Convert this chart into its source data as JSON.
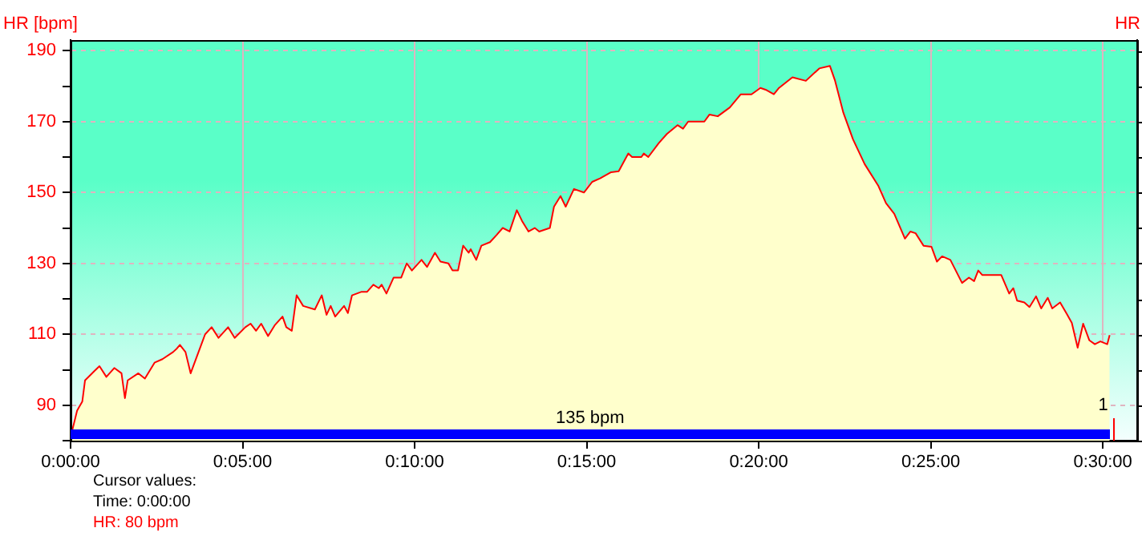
{
  "chart_data": {
    "type": "area",
    "ylabel": "HR [bpm]",
    "y2label": "HR",
    "x": [
      0,
      0.19,
      0.34,
      0.42,
      0.7,
      0.84,
      1.04,
      1.27,
      1.48,
      1.58,
      1.66,
      1.97,
      2.16,
      2.44,
      2.67,
      2.98,
      3.09,
      3.18,
      3.34,
      3.49,
      3.68,
      3.91,
      4.1,
      4.3,
      4.58,
      4.77,
      5.08,
      5.23,
      5.39,
      5.54,
      5.74,
      5.93,
      6.16,
      6.27,
      6.43,
      6.57,
      6.76,
      7.1,
      7.3,
      7.44,
      7.56,
      7.69,
      7.95,
      8.06,
      8.18,
      8.46,
      8.62,
      8.8,
      8.96,
      9.04,
      9.18,
      9.39,
      9.61,
      9.77,
      9.92,
      10.2,
      10.36,
      10.59,
      10.75,
      10.98,
      11.1,
      11.26,
      11.41,
      11.57,
      11.63,
      11.79,
      11.94,
      12.19,
      12.38,
      12.56,
      12.76,
      12.97,
      13.12,
      13.31,
      13.49,
      13.62,
      13.93,
      14.05,
      14.24,
      14.39,
      14.63,
      14.92,
      15.16,
      15.39,
      15.7,
      15.93,
      16.21,
      16.32,
      16.59,
      16.66,
      16.79,
      17.1,
      17.33,
      17.64,
      17.8,
      17.95,
      18.42,
      18.57,
      18.81,
      19.16,
      19.48,
      19.79,
      20.05,
      20.2,
      20.44,
      20.59,
      20.98,
      21.37,
      21.76,
      22.07,
      22.22,
      22.46,
      22.74,
      23.08,
      23.47,
      23.7,
      23.94,
      24.25,
      24.41,
      24.56,
      24.79,
      25.02,
      25.18,
      25.33,
      25.57,
      25.91,
      26.11,
      26.26,
      26.38,
      26.5,
      27.05,
      27.28,
      27.4,
      27.51,
      27.72,
      27.87,
      28.06,
      28.21,
      28.4,
      28.53,
      28.76,
      28.95,
      29.1,
      29.27,
      29.43,
      29.61,
      29.77,
      29.93,
      30.13,
      30.2
    ],
    "series": [
      {
        "color": "#ff0000",
        "values": [
          81,
          88.5,
          91,
          97,
          99.7,
          101,
          98,
          100.5,
          99,
          92,
          97,
          99,
          97.5,
          102,
          103,
          105,
          106,
          107,
          105,
          99,
          104,
          110,
          112,
          109,
          112,
          109,
          112,
          113,
          111,
          113,
          109.5,
          112.5,
          115,
          112,
          111,
          121,
          118,
          117,
          121,
          115.5,
          118,
          115,
          118,
          116,
          121,
          122,
          122,
          124,
          123,
          124,
          121.5,
          126,
          126,
          130,
          128,
          131,
          129,
          133,
          130.5,
          130,
          128,
          128,
          135,
          133,
          134,
          131,
          135,
          136,
          138,
          140,
          139,
          145,
          142,
          139,
          140,
          139,
          140,
          146,
          149,
          146,
          151,
          150,
          153,
          154,
          155.7,
          156,
          161,
          160,
          160,
          161,
          160,
          164,
          166.5,
          169,
          168,
          170,
          170,
          172,
          171.5,
          174,
          177.7,
          177.7,
          179.5,
          179,
          177.7,
          179.5,
          182.5,
          181.5,
          185,
          185.7,
          181.5,
          172.5,
          165,
          158,
          152,
          147,
          144,
          137,
          139,
          138.5,
          135,
          134.7,
          130.5,
          132,
          131,
          124.5,
          126,
          125,
          128,
          126.7,
          126.7,
          121.5,
          123,
          119.5,
          119,
          117.7,
          120.7,
          117.3,
          120.3,
          117.3,
          119,
          115.8,
          113.2,
          106.2,
          113,
          108.3,
          107.2,
          108,
          107.2,
          109.8
        ]
      }
    ],
    "xlim": [
      0,
      31
    ],
    "xticks": [
      {
        "value": 0,
        "label": "0:00:00"
      },
      {
        "value": 5,
        "label": "0:05:00"
      },
      {
        "value": 10,
        "label": "0:10:00"
      },
      {
        "value": 15,
        "label": "0:15:00"
      },
      {
        "value": 20,
        "label": "0:20:00"
      },
      {
        "value": 25,
        "label": "0:25:00"
      },
      {
        "value": 30,
        "label": "0:30:00"
      }
    ],
    "ylim": [
      80,
      193
    ],
    "yticks": [
      {
        "value": 80,
        "label": null
      },
      90,
      {
        "value": 100,
        "label": null
      },
      110,
      {
        "value": 120,
        "label": null
      },
      130,
      {
        "value": 140,
        "label": null
      },
      150,
      {
        "value": 160,
        "label": null
      },
      170,
      {
        "value": 180,
        "label": null
      },
      190
    ],
    "annotations": [
      "135 bpm",
      "1",
      "Cursor values:",
      "Time: 0:00:00",
      "HR: 80 bpm"
    ],
    "grid": true,
    "legend": false,
    "marker": "none",
    "line_style": "solid"
  }
}
